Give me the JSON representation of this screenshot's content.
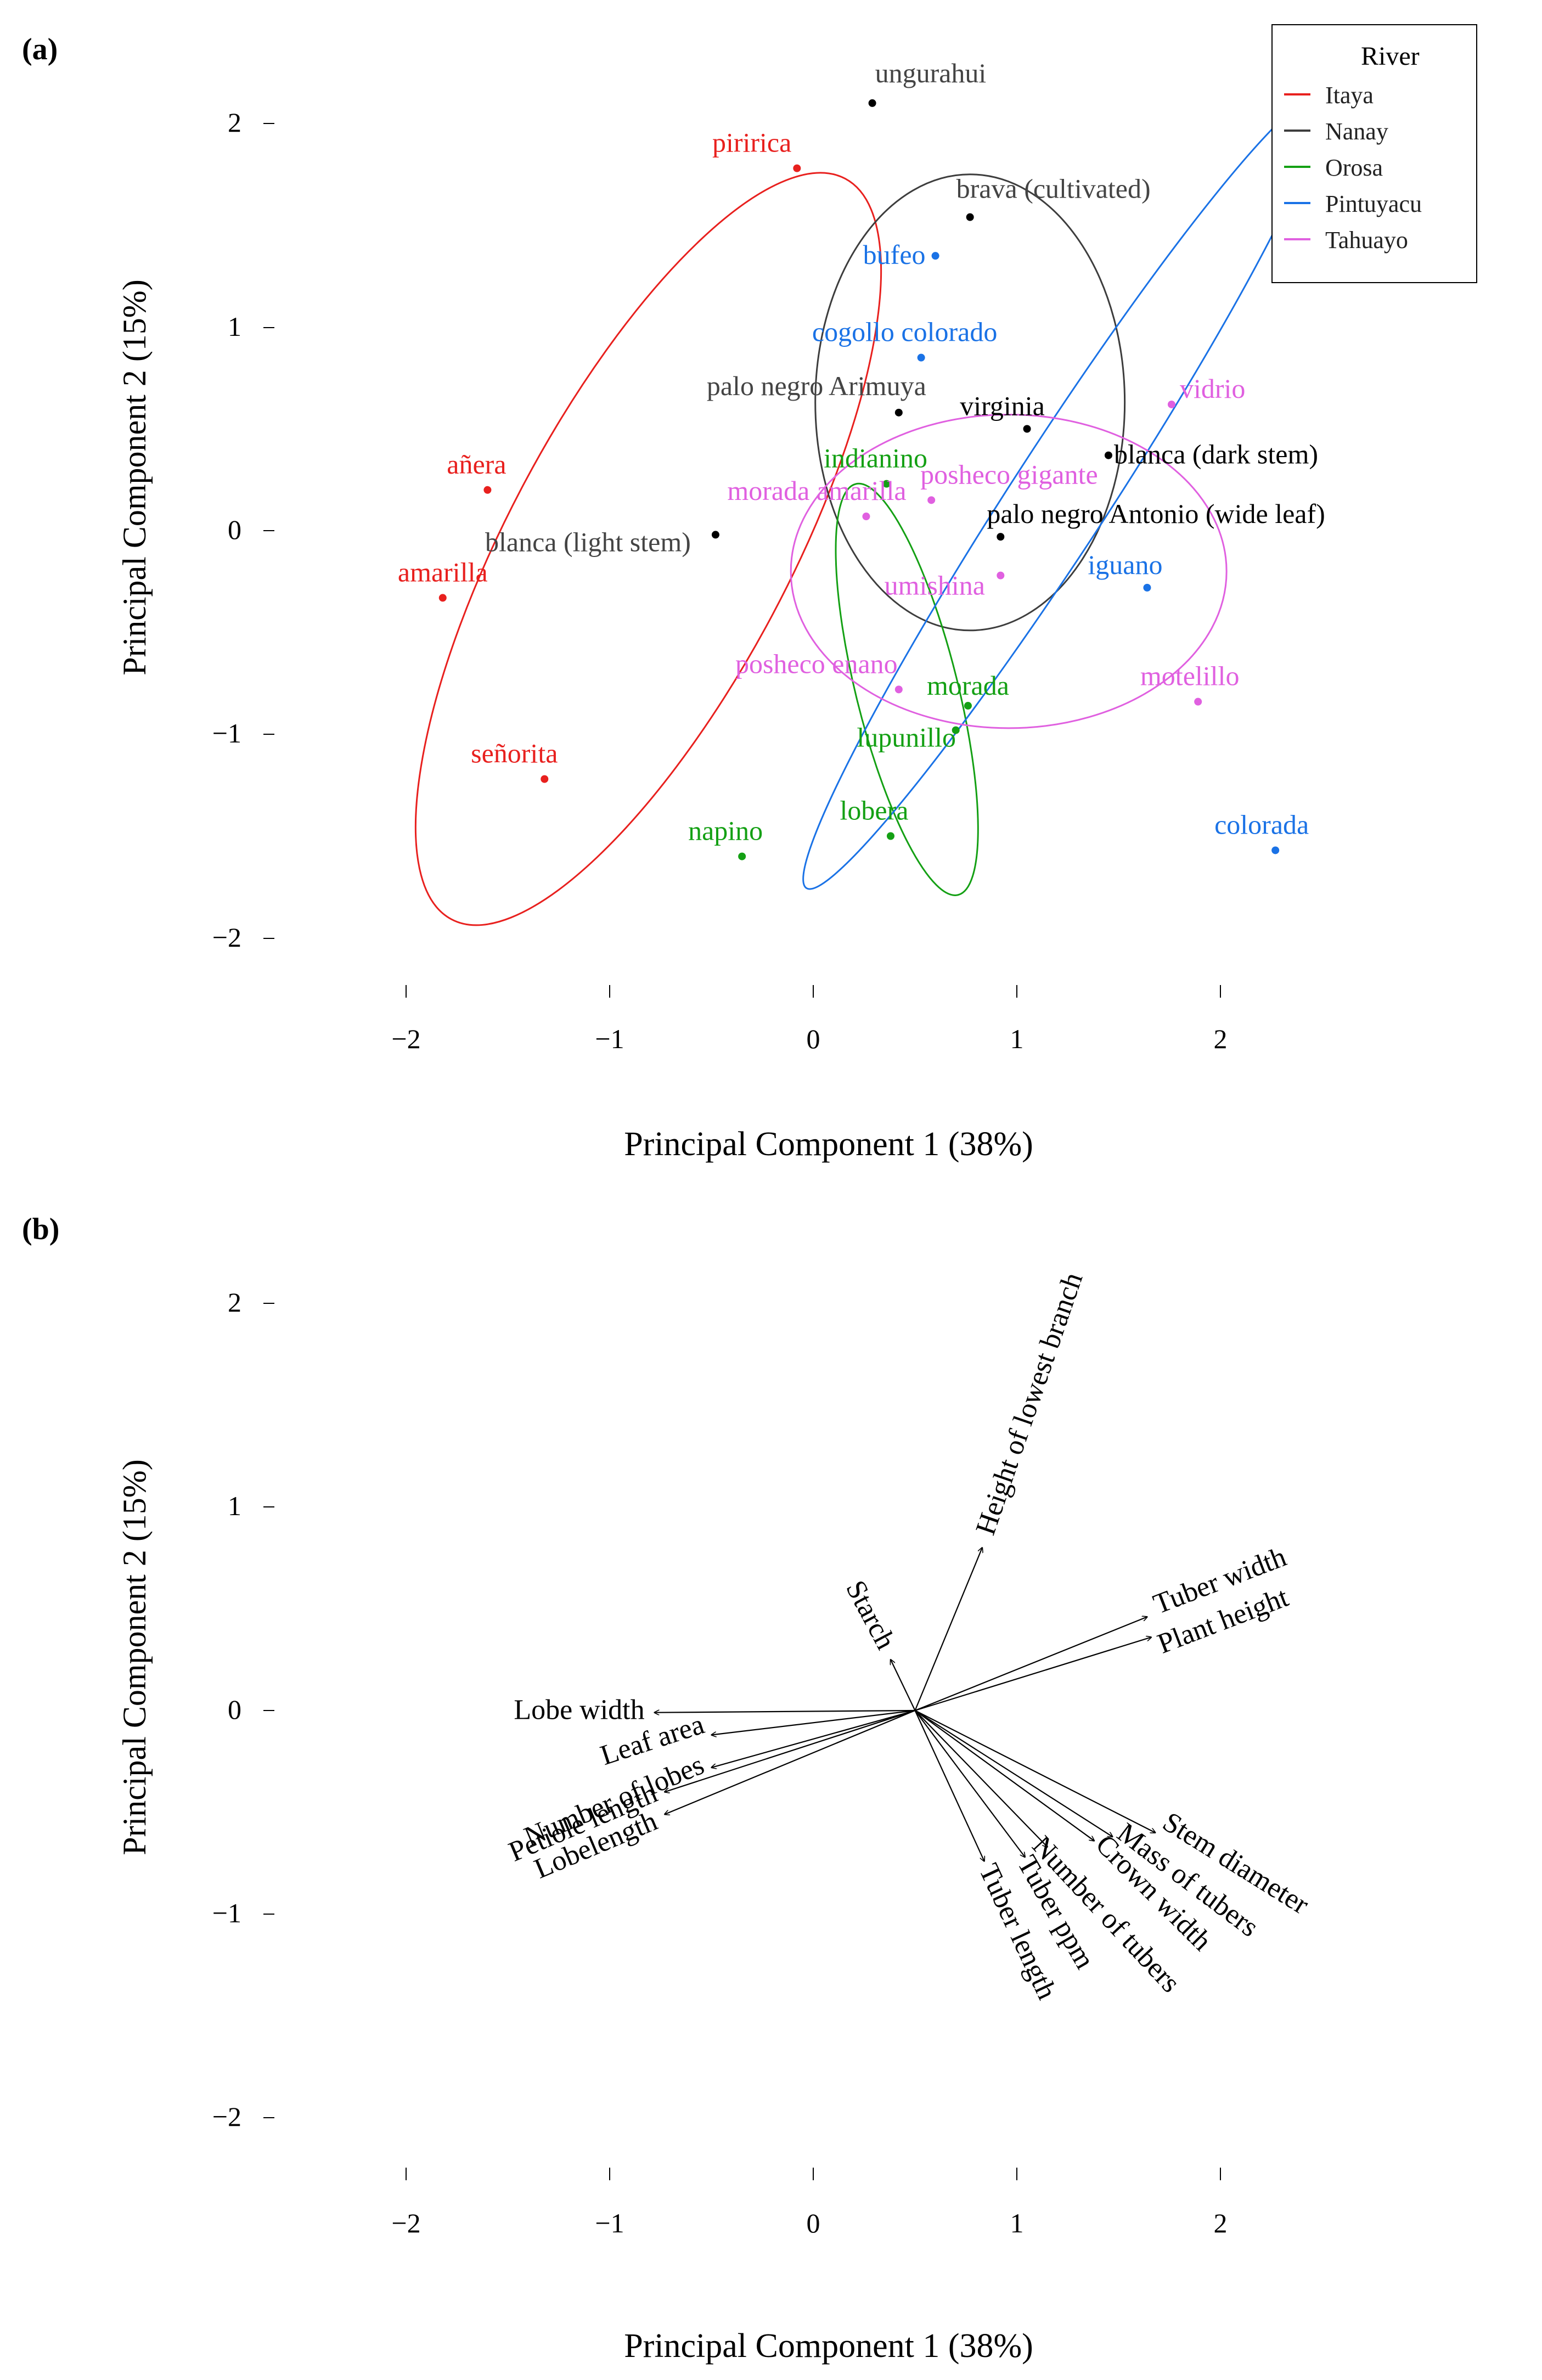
{
  "chart_data": [
    {
      "type": "scatter",
      "panel_label": "(a)",
      "xlabel": "Principal Component 1 (38%)",
      "ylabel": "Principal Component 2 (15%)",
      "xlim": [
        -2.5,
        2.5
      ],
      "ylim": [
        -2.1,
        2.1
      ],
      "xticks": [
        "−2",
        "−1",
        "0",
        "1",
        "2"
      ],
      "yticks": [
        "2",
        "1",
        "0",
        "−1",
        "−2"
      ],
      "legend": {
        "title": "River",
        "position": "top-right"
      },
      "series": [
        {
          "name": "Itaya",
          "color": "#e8201e",
          "ellipse": {
            "cx": -0.81,
            "cy": -0.09,
            "rx": 2.06,
            "ry": 0.69,
            "angle_deg": 62
          },
          "points": [
            {
              "label": "piririca",
              "x": -0.08,
              "y": 1.78
            },
            {
              "label": "añera",
              "x": -1.6,
              "y": 0.2
            },
            {
              "label": "amarilla",
              "x": -1.82,
              "y": -0.33
            },
            {
              "label": "señorita",
              "x": -1.32,
              "y": -1.22
            }
          ]
        },
        {
          "name": "Nanay",
          "color": "#3d3d3d",
          "ellipse": {
            "cx": 0.77,
            "cy": 0.63,
            "rx": 0.76,
            "ry": 1.12,
            "angle_deg": 0
          },
          "points": [
            {
              "label": "ungurahui",
              "x": 0.29,
              "y": 2.1
            },
            {
              "label": "brava (cultivated)",
              "x": 0.77,
              "y": 1.54
            },
            {
              "label": "palo negro Arimuya",
              "x": 0.42,
              "y": 0.58
            },
            {
              "label": "blanca (light stem)",
              "x": -0.48,
              "y": -0.02
            },
            {
              "label": "virginia",
              "x": 1.05,
              "y": 0.5
            },
            {
              "label": "blanca (dark stem)",
              "x": 1.45,
              "y": 0.37
            },
            {
              "label": "palo negro Antonio (wide leaf)",
              "x": 0.92,
              "y": -0.03
            }
          ]
        },
        {
          "name": "Orosa",
          "color": "#14a014",
          "ellipse": {
            "cx": 0.46,
            "cy": -0.78,
            "rx": 1.04,
            "ry": 0.25,
            "angle_deg": 104
          },
          "points": [
            {
              "label": "indianino",
              "x": 0.36,
              "y": 0.23
            },
            {
              "label": "morada",
              "x": 0.76,
              "y": -0.86
            },
            {
              "label": "lupunillo",
              "x": 0.7,
              "y": -0.98
            },
            {
              "label": "lobera",
              "x": 0.38,
              "y": -1.5
            },
            {
              "label": "napino",
              "x": -0.35,
              "y": -1.6
            }
          ]
        },
        {
          "name": "Pintuyacu",
          "color": "#1a72e6",
          "ellipse": {
            "cx": 1.23,
            "cy": 0.19,
            "rx": 2.32,
            "ry": 0.24,
            "angle_deg": 57
          },
          "points": [
            {
              "label": "bufeo",
              "x": 0.6,
              "y": 1.35
            },
            {
              "label": "cogollo colorado",
              "x": 0.53,
              "y": 0.85
            },
            {
              "label": "iguano",
              "x": 1.64,
              "y": -0.28
            },
            {
              "label": "colorada",
              "x": 2.27,
              "y": -1.57
            }
          ]
        },
        {
          "name": "Tahuayo",
          "color": "#e060e0",
          "ellipse": {
            "cx": 0.96,
            "cy": -0.2,
            "rx": 1.07,
            "ry": 0.77,
            "angle_deg": 0
          },
          "points": [
            {
              "label": "vidrio",
              "x": 1.76,
              "y": 0.62
            },
            {
              "label": "posheco gigante",
              "x": 0.58,
              "y": 0.15
            },
            {
              "label": "morada amarilla",
              "x": 0.26,
              "y": 0.07
            },
            {
              "label": "umishina",
              "x": 0.92,
              "y": -0.22
            },
            {
              "label": "posheco enano",
              "x": 0.42,
              "y": -0.78
            },
            {
              "label": "motelillo",
              "x": 1.89,
              "y": -0.84
            }
          ]
        }
      ]
    },
    {
      "type": "biplot",
      "panel_label": "(b)",
      "xlabel": "Principal Component 1 (38%)",
      "ylabel": "Principal Component 2 (15%)",
      "xlim": [
        -2.5,
        2.5
      ],
      "ylim": [
        -2.1,
        2.1
      ],
      "xticks": [
        "−2",
        "−1",
        "0",
        "1",
        "2"
      ],
      "yticks": [
        "2",
        "1",
        "0",
        "−1",
        "−2"
      ],
      "origin": {
        "x": 0.5,
        "y": 0.0
      },
      "vectors": [
        {
          "label": "Height of lowest branch",
          "x": 0.83,
          "y": 0.8
        },
        {
          "label": "Tuber width",
          "x": 1.64,
          "y": 0.46
        },
        {
          "label": "Plant height",
          "x": 1.66,
          "y": 0.36
        },
        {
          "label": "Starch",
          "x": 0.38,
          "y": 0.25
        },
        {
          "label": "Lobe width",
          "x": -0.78,
          "y": -0.01
        },
        {
          "label": "Leaf area",
          "x": -0.5,
          "y": -0.12
        },
        {
          "label": "Number of lobes",
          "x": -0.5,
          "y": -0.28
        },
        {
          "label": "Petiole length",
          "x": -0.73,
          "y": -0.4
        },
        {
          "label": "Lobelength",
          "x": -0.73,
          "y": -0.51
        },
        {
          "label": "Stem diameter",
          "x": 1.68,
          "y": -0.6
        },
        {
          "label": "Mass of tubers",
          "x": 1.47,
          "y": -0.62
        },
        {
          "label": "Crown width",
          "x": 1.38,
          "y": -0.64
        },
        {
          "label": "Number of tubers",
          "x": 1.15,
          "y": -0.67
        },
        {
          "label": "Tuber ppm",
          "x": 1.04,
          "y": -0.72
        },
        {
          "label": "Tuber length",
          "x": 0.84,
          "y": -0.74
        }
      ]
    }
  ]
}
